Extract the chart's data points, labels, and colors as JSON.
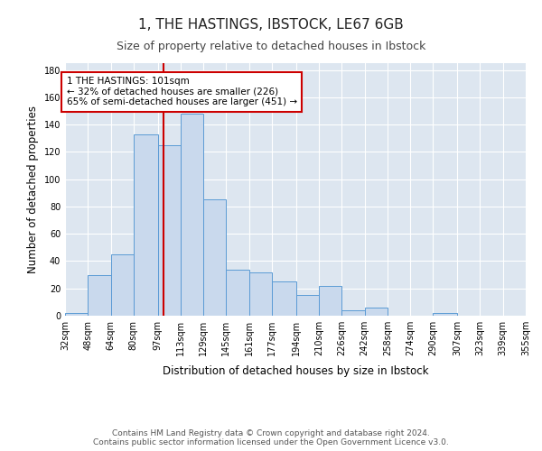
{
  "title": "1, THE HASTINGS, IBSTOCK, LE67 6GB",
  "subtitle": "Size of property relative to detached houses in Ibstock",
  "xlabel": "Distribution of detached houses by size in Ibstock",
  "ylabel": "Number of detached properties",
  "bar_color": "#c9d9ed",
  "bar_edge_color": "#5b9bd5",
  "background_color": "#dde6f0",
  "fig_background": "#ffffff",
  "bin_edges": [
    32,
    48,
    64,
    80,
    97,
    113,
    129,
    145,
    161,
    177,
    194,
    210,
    226,
    242,
    258,
    274,
    290,
    307,
    323,
    339,
    355
  ],
  "bar_heights": [
    2,
    30,
    45,
    133,
    125,
    148,
    85,
    34,
    32,
    25,
    15,
    22,
    4,
    6,
    0,
    0,
    2,
    0,
    0,
    0
  ],
  "property_size": 101,
  "red_line_color": "#cc0000",
  "annotation_text": "1 THE HASTINGS: 101sqm\n← 32% of detached houses are smaller (226)\n65% of semi-detached houses are larger (451) →",
  "annotation_box_color": "#ffffff",
  "annotation_box_edge": "#cc0000",
  "ylim": [
    0,
    185
  ],
  "yticks": [
    0,
    20,
    40,
    60,
    80,
    100,
    120,
    140,
    160,
    180
  ],
  "footer_text": "Contains HM Land Registry data © Crown copyright and database right 2024.\nContains public sector information licensed under the Open Government Licence v3.0.",
  "grid_color": "#ffffff",
  "title_fontsize": 11,
  "subtitle_fontsize": 9,
  "label_fontsize": 8.5,
  "tick_fontsize": 7,
  "footer_fontsize": 6.5,
  "annotation_fontsize": 7.5
}
